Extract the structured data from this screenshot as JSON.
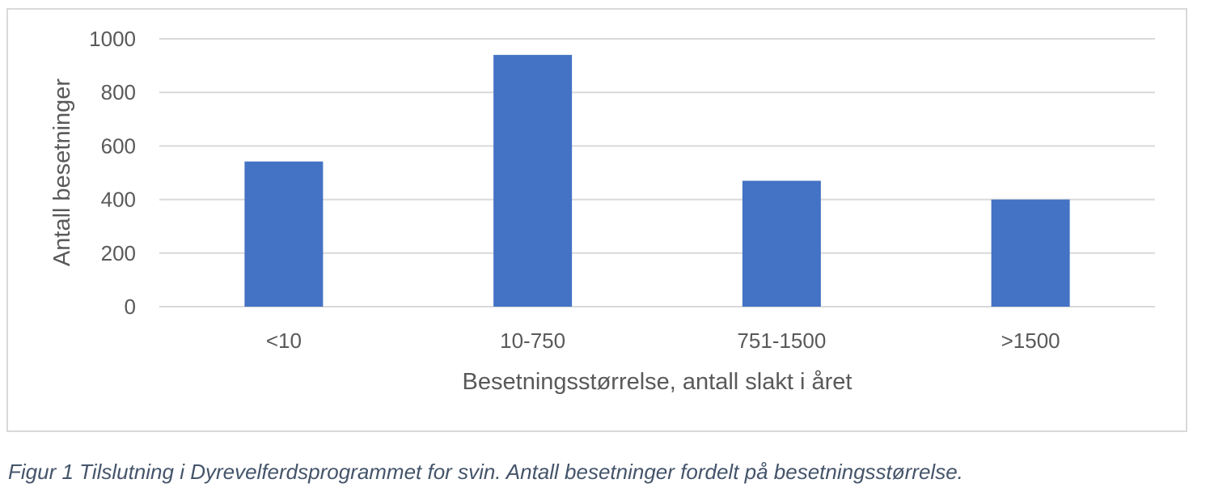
{
  "chart_data": {
    "type": "bar",
    "categories": [
      "<10",
      "10-750",
      "751-1500",
      ">1500"
    ],
    "values": [
      542,
      940,
      470,
      400
    ],
    "xlabel": "Besetningsstørrelse, antall slakt i året",
    "ylabel": "Antall besetninger",
    "ylim": [
      0,
      1000
    ],
    "yticks": [
      0,
      200,
      400,
      600,
      800,
      1000
    ],
    "grid": true,
    "bar_color": "#4472c4",
    "grid_color": "#d9d9d9"
  },
  "caption": "Figur 1 Tilslutning i Dyrevelferdsprogrammet for svin. Antall besetninger fordelt på besetningsstørrelse."
}
